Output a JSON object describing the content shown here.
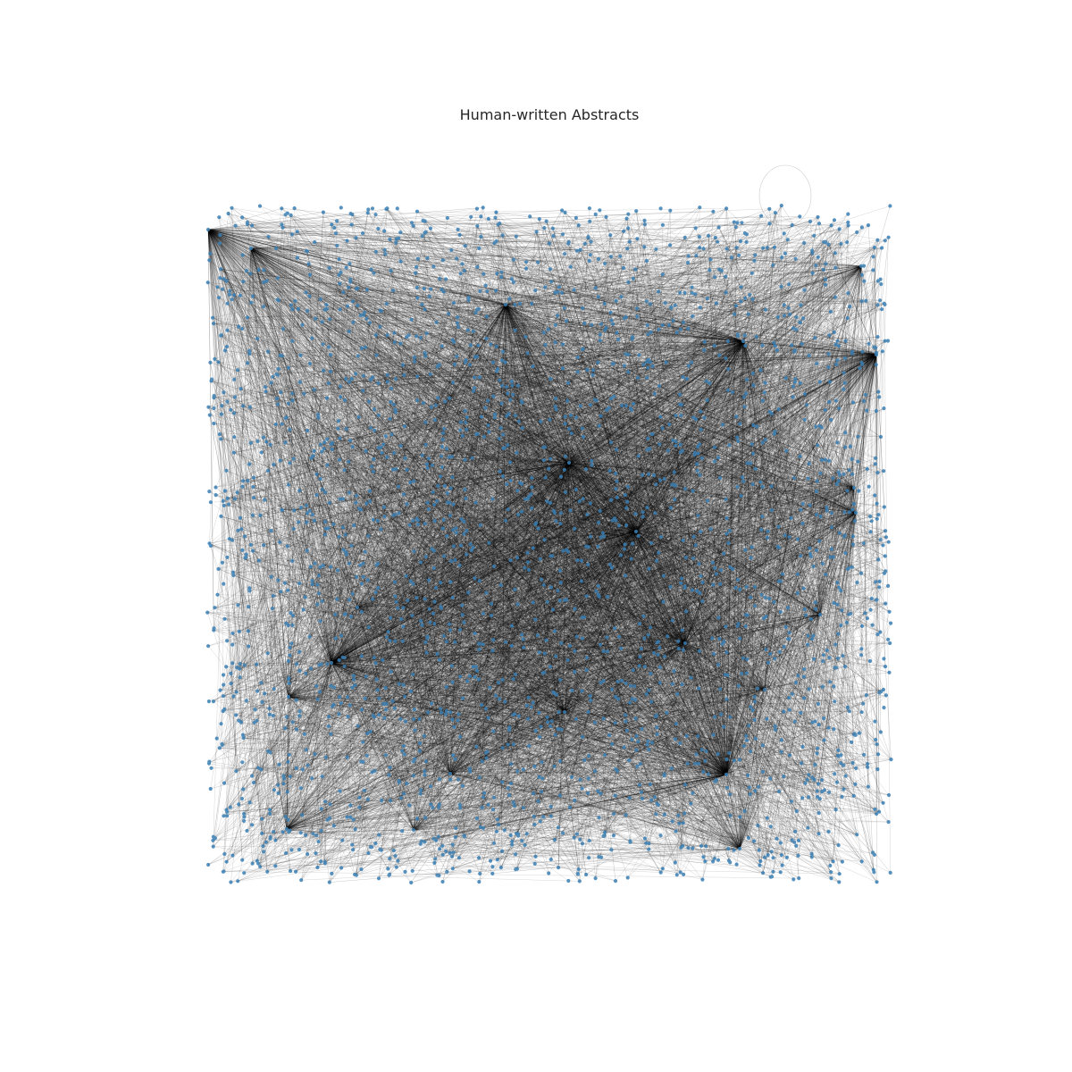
{
  "figure": {
    "title": "Human-written Abstracts"
  },
  "colors": {
    "background": "#ffffff",
    "node": "#3b7fb4",
    "edge": "#000000",
    "title": "#262626"
  },
  "graph": {
    "type": "network",
    "layout": "random-uniform",
    "self_loop_visible": true,
    "approx_node_count": 2600,
    "hub_count": 22,
    "node_color_name": "steel-blue",
    "edge_color_name": "black-translucent"
  }
}
